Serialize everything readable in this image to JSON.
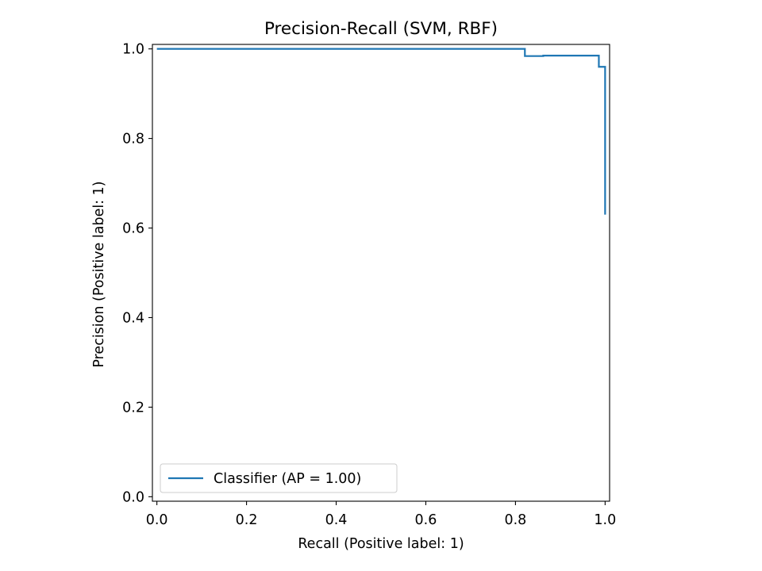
{
  "chart_data": {
    "type": "line",
    "title": "Precision-Recall (SVM, RBF)",
    "xlabel": "Recall (Positive label: 1)",
    "ylabel": "Precision (Positive label: 1)",
    "xlim": [
      -0.01,
      1.01
    ],
    "ylim": [
      -0.01,
      1.01
    ],
    "x_ticks": [
      0.0,
      0.2,
      0.4,
      0.6,
      0.8,
      1.0
    ],
    "x_tick_labels": [
      "0.0",
      "0.2",
      "0.4",
      "0.6",
      "0.8",
      "1.0"
    ],
    "y_ticks": [
      0.0,
      0.2,
      0.4,
      0.6,
      0.8,
      1.0
    ],
    "y_tick_labels": [
      "0.0",
      "0.2",
      "0.4",
      "0.6",
      "0.8",
      "1.0"
    ],
    "grid": false,
    "legend_position": "lower-left",
    "drawstyle": "steps-post",
    "series": [
      {
        "name": "Classifier (AP = 1.00)",
        "color": "#1f77b4",
        "x": [
          1.0,
          1.0,
          0.986,
          0.986,
          0.862,
          0.862,
          0.821,
          0.821,
          0.0
        ],
        "y": [
          0.63,
          0.96,
          0.96,
          0.985,
          0.985,
          0.984,
          0.984,
          1.0,
          1.0
        ]
      }
    ]
  }
}
